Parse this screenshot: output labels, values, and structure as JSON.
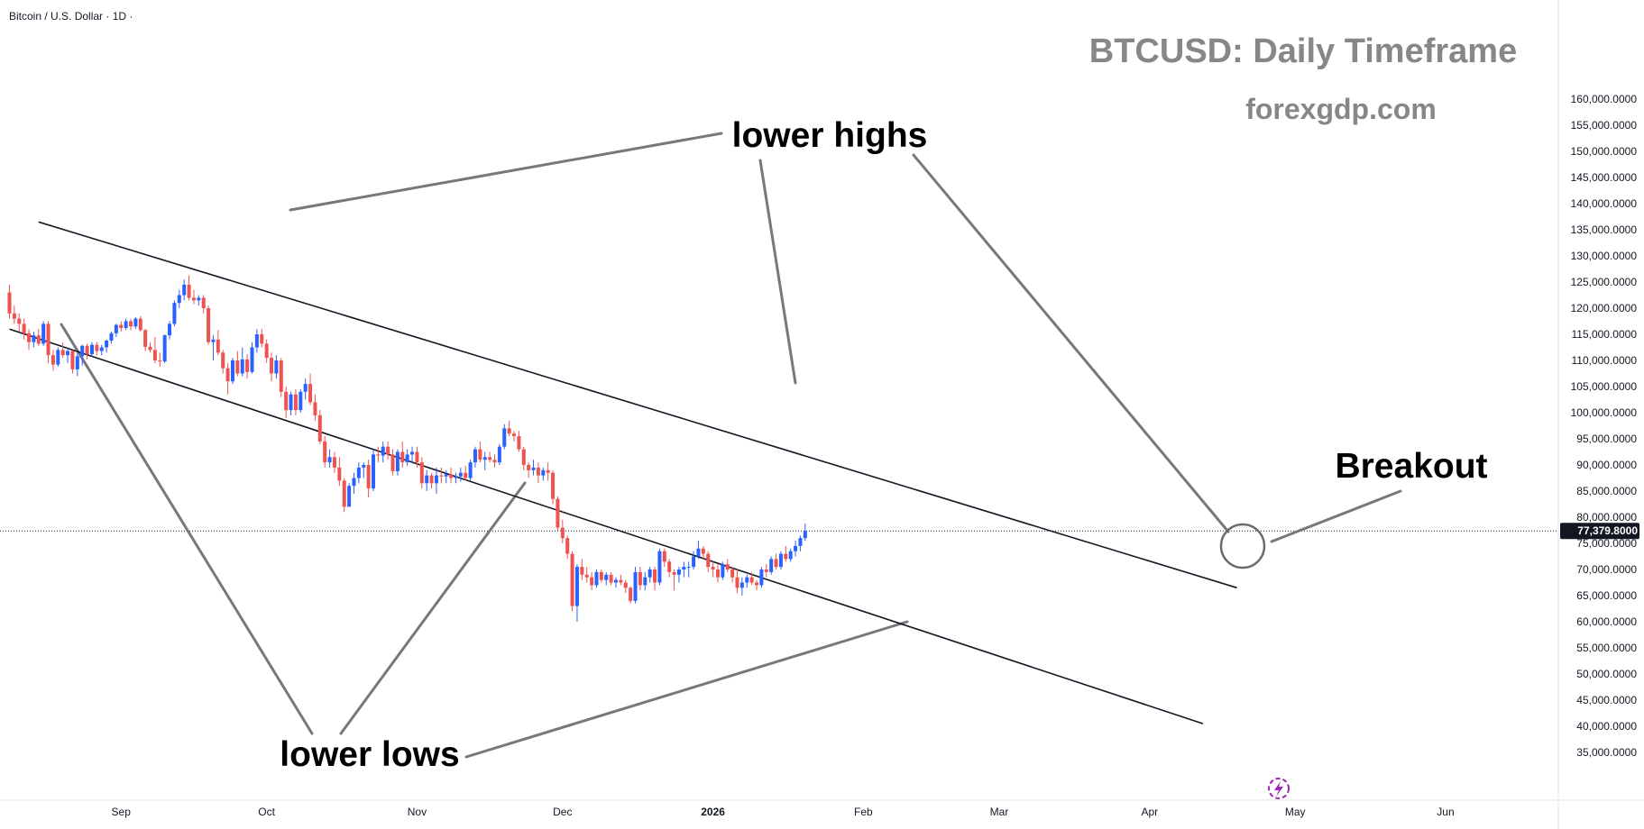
{
  "header": {
    "symbol_label": "Bitcoin / U.S. Dollar · 1D ·"
  },
  "overlay": {
    "title": "BTCUSD: Daily Timeframe",
    "subtitle": "forexgdp.com"
  },
  "annotations": {
    "lower_highs": "lower highs",
    "lower_lows": "lower lows",
    "breakout": "Breakout"
  },
  "colors": {
    "up": "#2962ff",
    "down": "#ef5350",
    "trendline": "#131722",
    "pointer": "#787878",
    "price_label_bg": "#131722"
  },
  "chart_data": {
    "type": "candlestick",
    "title": "BTCUSD: Daily Timeframe",
    "symbol": "Bitcoin / U.S. Dollar",
    "interval": "1D",
    "y_axis": {
      "side": "right",
      "range": [
        30000,
        162500
      ],
      "ticks": [
        35000,
        40000,
        45000,
        50000,
        55000,
        60000,
        65000,
        70000,
        75000,
        80000,
        85000,
        90000,
        95000,
        100000,
        105000,
        110000,
        115000,
        120000,
        125000,
        130000,
        135000,
        140000,
        145000,
        150000,
        155000,
        160000
      ],
      "tick_labels": [
        "35,000.0000",
        "40,000.0000",
        "45,000.0000",
        "50,000.0000",
        "55,000.0000",
        "60,000.0000",
        "65,000.0000",
        "70,000.0000",
        "75,000.0000",
        "80,000.0000",
        "85,000.0000",
        "90,000.0000",
        "95,000.0000",
        "100,000.0000",
        "105,000.0000",
        "110,000.0000",
        "115,000.0000",
        "120,000.0000",
        "125,000.0000",
        "130,000.0000",
        "135,000.0000",
        "140,000.0000",
        "145,000.0000",
        "150,000.0000",
        "155,000.0000",
        "160,000.0000"
      ]
    },
    "x_axis": {
      "labels": [
        "Sep",
        "Oct",
        "Nov",
        "Dec",
        "2026",
        "Feb",
        "Mar",
        "Apr",
        "May",
        "Jun"
      ],
      "bold_labels": [
        "2026"
      ],
      "label_days": [
        23,
        53,
        84,
        114,
        145,
        176,
        204,
        235,
        265,
        296
      ],
      "last_bar_day": 252,
      "day_range": [
        0,
        306
      ]
    },
    "last_price": 77379.8,
    "last_price_label": "77,379.8000",
    "candles": [
      [
        123000,
        124500,
        118000,
        119000
      ],
      [
        119000,
        120500,
        117000,
        118000
      ],
      [
        118000,
        119000,
        115500,
        117000
      ],
      [
        117000,
        118000,
        114000,
        115200
      ],
      [
        115200,
        116000,
        112000,
        113500
      ],
      [
        113500,
        115500,
        112500,
        114800
      ],
      [
        114800,
        116000,
        112800,
        113200
      ],
      [
        113200,
        117500,
        112800,
        117000
      ],
      [
        117000,
        117500,
        109500,
        111000
      ],
      [
        111000,
        112000,
        108000,
        109200
      ],
      [
        109200,
        112500,
        108800,
        112000
      ],
      [
        112000,
        113500,
        110500,
        111000
      ],
      [
        111000,
        112500,
        109500,
        111800
      ],
      [
        111800,
        112000,
        107500,
        108300
      ],
      [
        108300,
        111500,
        107000,
        110800
      ],
      [
        110800,
        113000,
        109000,
        112800
      ],
      [
        112800,
        113200,
        110200,
        111200
      ],
      [
        111200,
        113500,
        110800,
        113000
      ],
      [
        113000,
        113500,
        111000,
        111800
      ],
      [
        111800,
        113000,
        111000,
        112500
      ],
      [
        112500,
        114000,
        111500,
        113800
      ],
      [
        113800,
        115500,
        113200,
        115200
      ],
      [
        115200,
        117000,
        114500,
        116800
      ],
      [
        116800,
        117500,
        115500,
        116200
      ],
      [
        116200,
        118000,
        115800,
        117500
      ],
      [
        117500,
        118000,
        115800,
        116500
      ],
      [
        116500,
        118300,
        116000,
        118000
      ],
      [
        118000,
        118500,
        115500,
        115800
      ],
      [
        115800,
        116000,
        111800,
        112600
      ],
      [
        112600,
        113500,
        111500,
        112000
      ],
      [
        112000,
        114500,
        109500,
        110000
      ],
      [
        110000,
        111500,
        108800,
        109800
      ],
      [
        109800,
        115000,
        109500,
        114800
      ],
      [
        114800,
        117500,
        114000,
        117000
      ],
      [
        117000,
        121500,
        116500,
        121000
      ],
      [
        121000,
        123500,
        120000,
        122500
      ],
      [
        122500,
        125500,
        121500,
        124500
      ],
      [
        124500,
        126300,
        121500,
        122000
      ],
      [
        122000,
        123500,
        120800,
        121500
      ],
      [
        121500,
        122500,
        120500,
        122000
      ],
      [
        122000,
        122500,
        119000,
        120000
      ],
      [
        120000,
        120500,
        113000,
        113500
      ],
      [
        113500,
        114800,
        110000,
        114000
      ],
      [
        114000,
        115800,
        111000,
        111500
      ],
      [
        111500,
        112000,
        107500,
        108500
      ],
      [
        108500,
        109500,
        103500,
        106000
      ],
      [
        106000,
        110500,
        105500,
        110000
      ],
      [
        110000,
        111800,
        107000,
        107500
      ],
      [
        107500,
        112500,
        107000,
        110200
      ],
      [
        110200,
        111200,
        106500,
        107800
      ],
      [
        107800,
        113500,
        107500,
        112500
      ],
      [
        112500,
        116000,
        111500,
        115000
      ],
      [
        115000,
        116000,
        112500,
        113200
      ],
      [
        113200,
        114000,
        109500,
        110500
      ],
      [
        110500,
        111500,
        106000,
        107500
      ],
      [
        107500,
        111000,
        106500,
        110000
      ],
      [
        110000,
        110500,
        103000,
        104000
      ],
      [
        104000,
        105000,
        99000,
        100500
      ],
      [
        100500,
        104000,
        99500,
        103500
      ],
      [
        103500,
        104500,
        99500,
        100500
      ],
      [
        100500,
        104500,
        100000,
        104000
      ],
      [
        104000,
        106500,
        102500,
        105500
      ],
      [
        105500,
        107500,
        101500,
        102000
      ],
      [
        102000,
        103500,
        98500,
        99500
      ],
      [
        99500,
        100500,
        94000,
        94500
      ],
      [
        94500,
        95500,
        89500,
        90500
      ],
      [
        90500,
        93000,
        89500,
        91500
      ],
      [
        91500,
        92500,
        88500,
        89500
      ],
      [
        89500,
        91500,
        86000,
        87000
      ],
      [
        87000,
        87500,
        81000,
        82000
      ],
      [
        82000,
        86500,
        82500,
        86000
      ],
      [
        86000,
        88500,
        84500,
        87500
      ],
      [
        87500,
        90500,
        86500,
        89500
      ],
      [
        89500,
        90500,
        87500,
        90000
      ],
      [
        90000,
        91000,
        83800,
        85500
      ],
      [
        85500,
        93000,
        85000,
        92000
      ],
      [
        92000,
        93500,
        90500,
        91800
      ],
      [
        91800,
        94500,
        90500,
        93500
      ],
      [
        93500,
        94500,
        91000,
        92000
      ],
      [
        92000,
        93000,
        88000,
        88800
      ],
      [
        88800,
        93000,
        88000,
        92500
      ],
      [
        92500,
        94500,
        89500,
        90500
      ],
      [
        90500,
        93000,
        89800,
        92000
      ],
      [
        92000,
        93500,
        90500,
        92500
      ],
      [
        92500,
        93500,
        89500,
        90500
      ],
      [
        90500,
        91500,
        85500,
        86500
      ],
      [
        86500,
        89000,
        85000,
        88000
      ],
      [
        88000,
        88500,
        85500,
        86500
      ],
      [
        86500,
        89500,
        84500,
        88000
      ],
      [
        88000,
        89500,
        86500,
        87800
      ],
      [
        87800,
        89000,
        86500,
        88200
      ],
      [
        88200,
        89500,
        86500,
        87500
      ],
      [
        87500,
        88500,
        86500,
        87800
      ],
      [
        87800,
        89500,
        86800,
        88500
      ],
      [
        88500,
        89800,
        87000,
        87500
      ],
      [
        87500,
        91000,
        87000,
        90500
      ],
      [
        90500,
        93500,
        89500,
        93000
      ],
      [
        93000,
        94500,
        90500,
        91000
      ],
      [
        91000,
        92500,
        89000,
        91500
      ],
      [
        91500,
        92500,
        90500,
        91000
      ],
      [
        91000,
        92000,
        89500,
        90500
      ],
      [
        90500,
        94000,
        90000,
        93500
      ],
      [
        93500,
        97800,
        93000,
        97000
      ],
      [
        97000,
        98500,
        95500,
        96000
      ],
      [
        96000,
        96500,
        94500,
        95500
      ],
      [
        95500,
        96500,
        92500,
        93000
      ],
      [
        93000,
        93500,
        89000,
        90000
      ],
      [
        90000,
        90500,
        87500,
        89000
      ],
      [
        89000,
        91000,
        88000,
        89500
      ],
      [
        89500,
        90500,
        86500,
        88000
      ],
      [
        88000,
        89500,
        87000,
        89000
      ],
      [
        89000,
        90500,
        87000,
        88500
      ],
      [
        88500,
        89000,
        82500,
        83500
      ],
      [
        83500,
        84000,
        77500,
        78000
      ],
      [
        78000,
        79500,
        75000,
        76000
      ],
      [
        76000,
        76500,
        72000,
        73000
      ],
      [
        73000,
        73500,
        62000,
        63000
      ],
      [
        63000,
        71000,
        60000,
        70500
      ],
      [
        70500,
        72000,
        68000,
        69000
      ],
      [
        69000,
        70500,
        67500,
        68500
      ],
      [
        68500,
        69500,
        66000,
        67000
      ],
      [
        67000,
        70000,
        66500,
        69500
      ],
      [
        69500,
        70000,
        67500,
        68000
      ],
      [
        68000,
        69500,
        67000,
        69000
      ],
      [
        69000,
        69500,
        67000,
        67500
      ],
      [
        67500,
        68500,
        66500,
        68000
      ],
      [
        68000,
        69000,
        67000,
        67500
      ],
      [
        67500,
        68000,
        65500,
        66500
      ],
      [
        66500,
        66800,
        63500,
        64000
      ],
      [
        64000,
        70500,
        63500,
        69500
      ],
      [
        69500,
        70500,
        66000,
        67000
      ],
      [
        67000,
        69500,
        66000,
        68500
      ],
      [
        68500,
        70500,
        67500,
        70000
      ],
      [
        70000,
        70500,
        66000,
        67500
      ],
      [
        67500,
        74000,
        67000,
        73500
      ],
      [
        73500,
        74000,
        70500,
        71500
      ],
      [
        71500,
        72000,
        68500,
        69500
      ],
      [
        69500,
        70000,
        66000,
        69000
      ],
      [
        69000,
        70500,
        67500,
        70000
      ],
      [
        70000,
        71500,
        68500,
        70500
      ],
      [
        70500,
        71500,
        68500,
        70500
      ],
      [
        70500,
        73500,
        70000,
        72500
      ],
      [
        72500,
        75500,
        72000,
        74000
      ],
      [
        74000,
        74500,
        72000,
        73000
      ],
      [
        73000,
        73500,
        69500,
        70500
      ],
      [
        70500,
        71500,
        68500,
        70000
      ],
      [
        70000,
        71000,
        67500,
        68500
      ],
      [
        68500,
        71500,
        68000,
        71000
      ],
      [
        71000,
        72000,
        69500,
        70000
      ],
      [
        70000,
        70500,
        67500,
        68500
      ],
      [
        68500,
        70000,
        65500,
        66500
      ],
      [
        66500,
        68500,
        65000,
        67500
      ],
      [
        67500,
        69000,
        66500,
        68500
      ],
      [
        68500,
        69500,
        67000,
        67500
      ],
      [
        67500,
        68000,
        66000,
        67000
      ],
      [
        67000,
        70500,
        66500,
        70000
      ],
      [
        70000,
        71000,
        68500,
        69500
      ],
      [
        69500,
        72500,
        69000,
        72000
      ],
      [
        72000,
        73000,
        70000,
        70500
      ],
      [
        70500,
        73500,
        70000,
        73000
      ],
      [
        73000,
        74500,
        71500,
        72000
      ],
      [
        72000,
        74000,
        71500,
        73500
      ],
      [
        73500,
        75500,
        72500,
        74500
      ],
      [
        74500,
        76500,
        73500,
        76000
      ],
      [
        76000,
        78800,
        75500,
        77380
      ]
    ],
    "trendlines": [
      {
        "name": "upper-channel",
        "from": [
          6,
          136500
        ],
        "to": [
          253,
          66500
        ]
      },
      {
        "name": "lower-channel",
        "from": [
          0,
          116000
        ],
        "to": [
          246,
          40500
        ]
      }
    ],
    "annotations": [
      {
        "text": "lower highs",
        "points_to_days": [
          29,
          131,
          236
        ]
      },
      {
        "text": "lower lows",
        "points_to_days": [
          9,
          84,
          147
        ]
      },
      {
        "text": "Breakout",
        "points_to_days": [
          249
        ]
      }
    ]
  }
}
